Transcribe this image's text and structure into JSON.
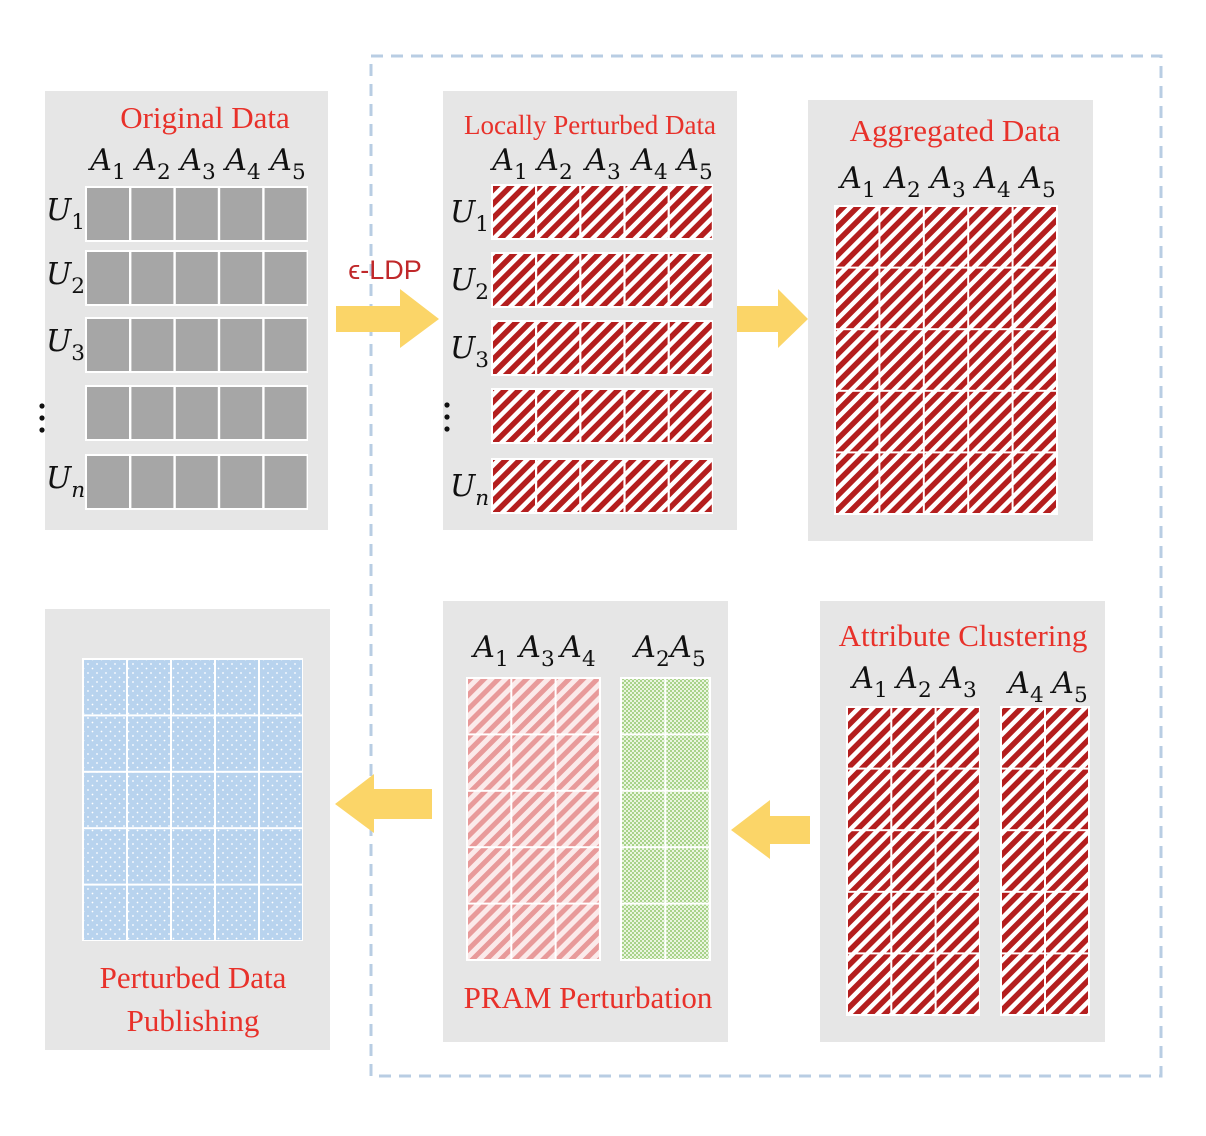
{
  "colors": {
    "panel": "#e6e6e6",
    "title_red": "#e8312a",
    "gray_cell": "#a6a6a6",
    "hatch_red": "#b41e1e",
    "hatch_pink": "#e89a9a",
    "dot_blue": "#b8d3ee",
    "check_green": "#b5d99c",
    "arrow": "#fbd568",
    "dash_border": "#b8cde3"
  },
  "panels": {
    "original": {
      "title": "Original Data",
      "attributes": [
        "A1",
        "A2",
        "A3",
        "A4",
        "A5"
      ],
      "users": [
        "U1",
        "U2",
        "U3",
        "⋮",
        "Un"
      ]
    },
    "local": {
      "title": "Locally Perturbed Data",
      "attributes": [
        "A1",
        "A2",
        "A3",
        "A4",
        "A5"
      ],
      "users": [
        "U1",
        "U2",
        "U3",
        "⋮",
        "Un"
      ]
    },
    "aggregated": {
      "title": "Aggregated Data",
      "attributes": [
        "A1",
        "A2",
        "A3",
        "A4",
        "A5"
      ]
    },
    "clustering": {
      "title": "Attribute Clustering",
      "group1": [
        "A1",
        "A2",
        "A3"
      ],
      "group2": [
        "A4",
        "A5"
      ]
    },
    "pram": {
      "title": "PRAM Perturbation",
      "group1": [
        "A1",
        "A3",
        "A4"
      ],
      "group2": [
        "A2",
        "A5"
      ]
    },
    "publishing": {
      "title_line1": "Perturbed Data",
      "title_line2": "Publishing"
    }
  },
  "arrow_label": "ϵ-LDP",
  "icons": [
    "arrow-right-icon",
    "arrow-left-icon",
    "vertical-ellipsis-icon"
  ]
}
